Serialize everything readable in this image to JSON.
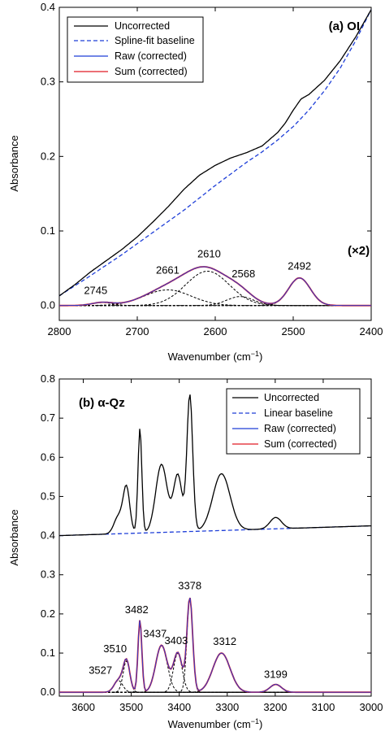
{
  "chart_data": [
    {
      "type": "line",
      "title": "(a) OI",
      "annotation": "(×2)",
      "xlabel": "Wavenumber (cm",
      "xlabel_sup": "−1",
      "xlabel_close": ")",
      "ylabel": "Absorbance",
      "xlim": [
        2800,
        2400
      ],
      "ylim": [
        -0.02,
        0.4
      ],
      "xticks": [
        2800,
        2700,
        2600,
        2500,
        2400
      ],
      "yticks": [
        0.0,
        0.1,
        0.2,
        0.3,
        0.4
      ],
      "ytick_labels": [
        "0.0",
        "0.1",
        "0.2",
        "0.3",
        "0.4"
      ],
      "legend": [
        {
          "label": "Uncorrected",
          "color": "#000000",
          "style": "solid"
        },
        {
          "label": "Spline-fit baseline",
          "color": "#1f3fd8",
          "style": "dashed"
        },
        {
          "label": "Raw (corrected)",
          "color": "#1f3fd8",
          "style": "solid"
        },
        {
          "label": "Sum (corrected)",
          "color": "#e01b24",
          "style": "solid"
        }
      ],
      "uncorrected": {
        "x": [
          2800,
          2780,
          2760,
          2740,
          2720,
          2700,
          2680,
          2660,
          2640,
          2620,
          2600,
          2580,
          2560,
          2540,
          2520,
          2510,
          2500,
          2490,
          2480,
          2460,
          2440,
          2420,
          2400
        ],
        "y": [
          0.013,
          0.028,
          0.045,
          0.06,
          0.075,
          0.092,
          0.112,
          0.133,
          0.156,
          0.175,
          0.188,
          0.198,
          0.205,
          0.214,
          0.232,
          0.245,
          0.262,
          0.277,
          0.283,
          0.302,
          0.328,
          0.36,
          0.397
        ]
      },
      "baseline": {
        "x": [
          2800,
          2760,
          2720,
          2680,
          2640,
          2600,
          2560,
          2540,
          2520,
          2500,
          2480,
          2460,
          2440,
          2420,
          2400
        ],
        "y": [
          0.013,
          0.04,
          0.068,
          0.098,
          0.128,
          0.161,
          0.192,
          0.206,
          0.222,
          0.24,
          0.262,
          0.288,
          0.318,
          0.355,
          0.397
        ]
      },
      "peaks": [
        {
          "label": "2745",
          "center": 2745,
          "height": 0.004,
          "width": 13
        },
        {
          "label": "2661",
          "center": 2661,
          "height": 0.021,
          "width": 30
        },
        {
          "label": "2610",
          "center": 2610,
          "height": 0.046,
          "width": 28
        },
        {
          "label": "2568",
          "center": 2568,
          "height": 0.012,
          "width": 17
        },
        {
          "label": "2492",
          "center": 2492,
          "height": 0.037,
          "width": 14
        }
      ]
    },
    {
      "type": "line",
      "title": "(b) α-Qz",
      "xlabel": "Wavenumber (cm",
      "xlabel_sup": "−1",
      "xlabel_close": ")",
      "ylabel": "Absorbance",
      "xlim": [
        3650,
        3000
      ],
      "ylim": [
        -0.01,
        0.8
      ],
      "xticks": [
        3600,
        3500,
        3400,
        3300,
        3200,
        3100,
        3000
      ],
      "yticks": [
        0.0,
        0.1,
        0.2,
        0.3,
        0.4,
        0.5,
        0.6,
        0.7,
        0.8
      ],
      "ytick_labels": [
        "0.0",
        "0.1",
        "0.2",
        "0.3",
        "0.4",
        "0.5",
        "0.6",
        "0.7",
        "0.8"
      ],
      "legend": [
        {
          "label": "Uncorrected",
          "color": "#000000",
          "style": "solid"
        },
        {
          "label": "Linear baseline",
          "color": "#1f3fd8",
          "style": "dashed"
        },
        {
          "label": "Raw (corrected)",
          "color": "#1f3fd8",
          "style": "solid"
        },
        {
          "label": "Sum (corrected)",
          "color": "#e01b24",
          "style": "solid"
        }
      ],
      "baseline": {
        "x": [
          3650,
          3000
        ],
        "y": [
          0.4,
          0.425
        ]
      },
      "peaks": [
        {
          "label": "3527",
          "center": 3527,
          "height": 0.03,
          "width": 9
        },
        {
          "label": "3510",
          "center": 3510,
          "height": 0.08,
          "width": 7
        },
        {
          "label": "3482",
          "center": 3482,
          "height": 0.185,
          "width": 4
        },
        {
          "label": "3437",
          "center": 3437,
          "height": 0.12,
          "width": 12
        },
        {
          "label": "3403",
          "center": 3403,
          "height": 0.1,
          "width": 9
        },
        {
          "label": "3378",
          "center": 3378,
          "height": 0.24,
          "width": 6
        },
        {
          "label": "3312",
          "center": 3312,
          "height": 0.1,
          "width": 18
        },
        {
          "label": "3199",
          "center": 3199,
          "height": 0.02,
          "width": 12
        }
      ]
    }
  ]
}
